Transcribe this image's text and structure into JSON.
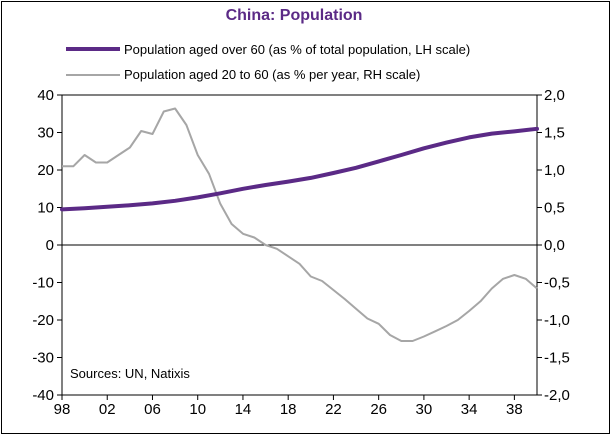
{
  "chart_data": {
    "type": "line",
    "title": "China: Population",
    "title_color": "#5b2a86",
    "source": "Sources: UN, Natixis",
    "x_ticks": [
      "98",
      "02",
      "06",
      "10",
      "14",
      "18",
      "22",
      "26",
      "30",
      "34",
      "38"
    ],
    "x_tick_years": [
      1998,
      2002,
      2006,
      2010,
      2014,
      2018,
      2022,
      2026,
      2030,
      2034,
      2038
    ],
    "xlim": [
      1998,
      2040
    ],
    "left_axis": {
      "ylim": [
        -40,
        40
      ],
      "ticks": [
        40,
        30,
        20,
        10,
        0,
        -10,
        -20,
        -30,
        -40
      ],
      "labels": [
        "40",
        "30",
        "20",
        "10",
        "0",
        "-10",
        "-20",
        "-30",
        "-40"
      ]
    },
    "right_axis": {
      "ylim": [
        -2.0,
        2.0
      ],
      "ticks": [
        2.0,
        1.5,
        1.0,
        0.5,
        0.0,
        -0.5,
        -1.0,
        -1.5,
        -2.0
      ],
      "labels": [
        "2,0",
        "1,5",
        "1,0",
        "0,5",
        "0,0",
        "-0,5",
        "-1,0",
        "-1,5",
        "-2,0"
      ]
    },
    "series": [
      {
        "name": "Population aged over 60 (as % of total population, LH scale)",
        "axis": "left",
        "color": "#5b2a86",
        "x": [
          1998,
          2000,
          2002,
          2004,
          2006,
          2008,
          2010,
          2012,
          2014,
          2016,
          2018,
          2020,
          2022,
          2024,
          2026,
          2028,
          2030,
          2032,
          2034,
          2036,
          2038,
          2040
        ],
        "values": [
          9.5,
          9.8,
          10.2,
          10.6,
          11.1,
          11.8,
          12.7,
          13.8,
          15.0,
          16.0,
          16.9,
          17.9,
          19.2,
          20.6,
          22.3,
          24.0,
          25.8,
          27.3,
          28.7,
          29.7,
          30.3,
          31.0
        ]
      },
      {
        "name": "Population aged 20 to 60 (as % per year, RH scale)",
        "axis": "right",
        "color": "#a6a6a6",
        "x": [
          1998,
          1999,
          2000,
          2001,
          2002,
          2003,
          2004,
          2005,
          2006,
          2007,
          2008,
          2009,
          2010,
          2011,
          2012,
          2013,
          2014,
          2015,
          2016,
          2017,
          2018,
          2019,
          2020,
          2021,
          2022,
          2023,
          2024,
          2025,
          2026,
          2027,
          2028,
          2029,
          2030,
          2031,
          2032,
          2033,
          2034,
          2035,
          2036,
          2037,
          2038,
          2039,
          2040
        ],
        "values": [
          1.05,
          1.05,
          1.2,
          1.1,
          1.1,
          1.2,
          1.3,
          1.52,
          1.48,
          1.78,
          1.82,
          1.6,
          1.2,
          0.95,
          0.55,
          0.28,
          0.15,
          0.1,
          0.0,
          -0.05,
          -0.15,
          -0.25,
          -0.42,
          -0.48,
          -0.6,
          -0.72,
          -0.85,
          -0.98,
          -1.05,
          -1.2,
          -1.28,
          -1.28,
          -1.22,
          -1.15,
          -1.08,
          -1.0,
          -0.88,
          -0.75,
          -0.58,
          -0.45,
          -0.4,
          -0.45,
          -0.58
        ]
      }
    ]
  }
}
